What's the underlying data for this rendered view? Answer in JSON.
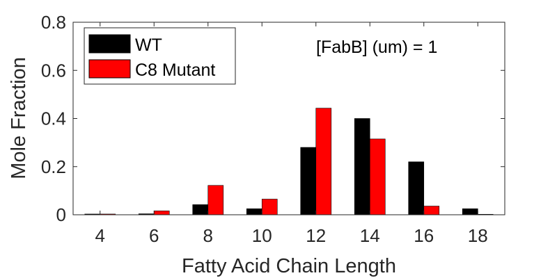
{
  "chart_data": {
    "type": "bar",
    "xlabel": "Fatty Acid Chain Length",
    "ylabel": "Mole Fraction",
    "categories": [
      "4",
      "6",
      "8",
      "10",
      "12",
      "14",
      "16",
      "18"
    ],
    "series": [
      {
        "name": "WT",
        "color": "#000000",
        "values": [
          0.003,
          0.004,
          0.042,
          0.025,
          0.28,
          0.4,
          0.22,
          0.025
        ]
      },
      {
        "name": "C8 Mutant",
        "color": "#ff0000",
        "values": [
          0.003,
          0.016,
          0.122,
          0.065,
          0.443,
          0.315,
          0.036,
          0.002
        ]
      }
    ],
    "ylim": [
      0,
      0.8
    ],
    "yticks": [
      0,
      0.2,
      0.4,
      0.6,
      0.8
    ],
    "ytick_labels": [
      "0",
      "0.2",
      "0.4",
      "0.6",
      "0.8"
    ],
    "legend_position": "top-left",
    "annotation": "[FabB] (um) = 1",
    "grid": false
  }
}
